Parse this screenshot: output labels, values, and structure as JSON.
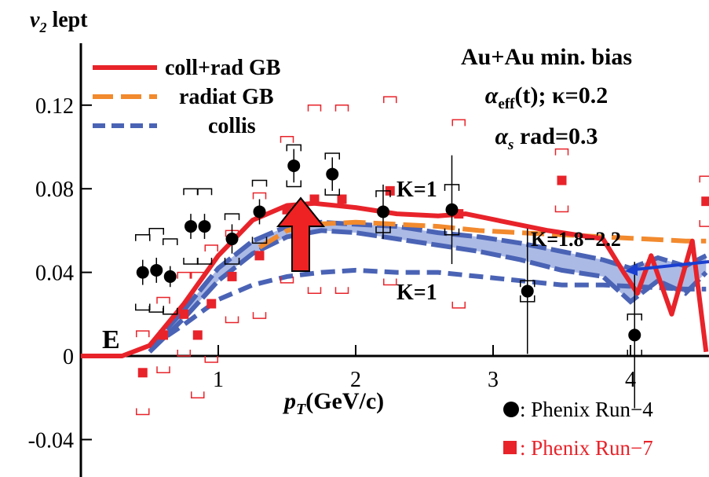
{
  "chart_data": {
    "type": "line",
    "ylabel_main": "v",
    "ylabel_sub": "2",
    "ylabel_rest": " lept",
    "xlabel_main": "p",
    "xlabel_sub": "T",
    "xlabel_rest": "(GeV/c)",
    "xlim": [
      0,
      4.55
    ],
    "ylim": [
      -0.05,
      0.14
    ],
    "x_ticks": [
      {
        "value": 1,
        "label": "1"
      },
      {
        "value": 2,
        "label": "2"
      },
      {
        "value": 3,
        "label": "3"
      },
      {
        "value": 4,
        "label": "4"
      }
    ],
    "y_ticks": [
      {
        "value": 0.12,
        "label": "0.12"
      },
      {
        "value": 0.08,
        "label": "0.08"
      },
      {
        "value": 0.04,
        "label": "0.04"
      },
      {
        "value": 0,
        "label": "0"
      },
      {
        "value": -0.04,
        "label": "-0.04"
      }
    ],
    "corner_label": "E",
    "annotation_lines": {
      "line1": "Au+Au min. bias",
      "line2_main": "α",
      "line2_sub": "eff",
      "line2_rest": "(t); κ=0.2",
      "line3_main": "α",
      "line3_sub": "s",
      "line3_rest": " rad=0.3"
    },
    "k_labels": {
      "k1_red": "K=1",
      "k_blue_band": "K=1.8−2.2",
      "k1_blue": "K=1"
    },
    "legend": [
      {
        "label": "coll+rad GB",
        "color": "#e8232a",
        "style": "solid"
      },
      {
        "label": "radiat GB",
        "color": "#f28a2e",
        "style": "dashed"
      },
      {
        "label": "collis",
        "color": "#4a63b5",
        "style": "dashed"
      }
    ],
    "data_legend": [
      {
        "marker": "●",
        "label": ": Phenix Run−4",
        "color": "#000000"
      },
      {
        "marker": "■",
        "label": ": Phenix Run−7",
        "color": "#e8232a"
      }
    ],
    "series": [
      {
        "name": "coll+rad GB",
        "color": "#e8232a",
        "x": [
          0,
          0.3,
          0.5,
          0.75,
          1.0,
          1.25,
          1.5,
          1.7,
          2.0,
          2.3,
          2.6,
          2.8,
          3.1,
          3.4,
          3.6,
          3.8,
          3.95,
          4.05,
          4.15,
          4.3,
          4.45,
          4.55
        ],
        "y": [
          0,
          0,
          0.005,
          0.025,
          0.048,
          0.065,
          0.072,
          0.073,
          0.071,
          0.068,
          0.067,
          0.068,
          0.064,
          0.06,
          0.058,
          0.056,
          0.04,
          0.03,
          0.048,
          0.02,
          0.055,
          0.002
        ]
      },
      {
        "name": "radiat GB",
        "color": "#f28a2e",
        "x": [
          1.3,
          1.5,
          1.7,
          2.0,
          2.3,
          2.6,
          2.9,
          3.2,
          3.5,
          3.8,
          4.1,
          4.4,
          4.55
        ],
        "y": [
          0.052,
          0.06,
          0.063,
          0.064,
          0.063,
          0.062,
          0.06,
          0.059,
          0.058,
          0.057,
          0.056,
          0.055,
          0.055
        ]
      },
      {
        "name": "collis",
        "color": "#4a63b5",
        "x": [
          0.5,
          0.75,
          1.0,
          1.25,
          1.5,
          1.75,
          2.0,
          2.3,
          2.6,
          2.9,
          3.2,
          3.5,
          3.8,
          4.1,
          4.4,
          4.55
        ],
        "y": [
          0.004,
          0.015,
          0.027,
          0.034,
          0.038,
          0.04,
          0.041,
          0.04,
          0.04,
          0.038,
          0.036,
          0.034,
          0.034,
          0.033,
          0.032,
          0.032
        ]
      },
      {
        "name": "K=1.8−2.2 band upper",
        "color": "#4a63b5",
        "x": [
          0.5,
          0.75,
          1.0,
          1.25,
          1.5,
          1.75,
          2.0,
          2.3,
          2.6,
          2.9,
          3.2,
          3.5,
          3.8,
          4.0,
          4.2,
          4.4,
          4.55
        ],
        "y": [
          0.004,
          0.022,
          0.042,
          0.055,
          0.062,
          0.064,
          0.063,
          0.062,
          0.059,
          0.057,
          0.054,
          0.05,
          0.046,
          0.042,
          0.047,
          0.043,
          0.048
        ]
      },
      {
        "name": "K=1.8−2.2 band lower",
        "color": "#4a63b5",
        "x": [
          0.5,
          0.75,
          1.0,
          1.25,
          1.5,
          1.75,
          2.0,
          2.3,
          2.6,
          2.9,
          3.2,
          3.5,
          3.8,
          4.0,
          4.2,
          4.4,
          4.55
        ],
        "y": [
          0.002,
          0.018,
          0.036,
          0.049,
          0.057,
          0.06,
          0.059,
          0.056,
          0.053,
          0.05,
          0.046,
          0.041,
          0.038,
          0.026,
          0.036,
          0.03,
          0.04
        ]
      }
    ],
    "phenix_run4": {
      "color": "#000000",
      "x": [
        0.45,
        0.55,
        0.65,
        0.8,
        0.9,
        1.1,
        1.3,
        1.55,
        1.83,
        2.2,
        2.7,
        3.25,
        4.03
      ],
      "y": [
        0.04,
        0.041,
        0.038,
        0.062,
        0.062,
        0.056,
        0.069,
        0.091,
        0.087,
        0.069,
        0.07,
        0.031,
        0.01
      ],
      "err": [
        0.006,
        0.006,
        0.005,
        0.006,
        0.006,
        0.007,
        0.006,
        0.008,
        0.008,
        0.013,
        0.026,
        0.03,
        0.035
      ],
      "sys": [
        0.018,
        0.02,
        0.018,
        0.018,
        0.018,
        0.012,
        0.015,
        0.01,
        0.01,
        0.01,
        0.012,
        0.005,
        0.01
      ]
    },
    "phenix_run7": {
      "color": "#e8232a",
      "x": [
        0.45,
        0.6,
        0.75,
        0.85,
        0.95,
        1.1,
        1.3,
        1.5,
        1.7,
        1.9,
        2.25,
        2.75,
        3.5,
        4.55
      ],
      "y": [
        -0.008,
        0.01,
        0.02,
        0.01,
        0.025,
        0.038,
        0.048,
        0.07,
        0.075,
        0.075,
        0.079,
        0.068,
        0.084,
        0.074
      ],
      "sys": [
        0.02,
        0.018,
        0.02,
        0.03,
        0.028,
        0.022,
        0.03,
        0.035,
        0.045,
        0.045,
        0.045,
        0.045,
        0.015,
        0.012
      ]
    }
  }
}
